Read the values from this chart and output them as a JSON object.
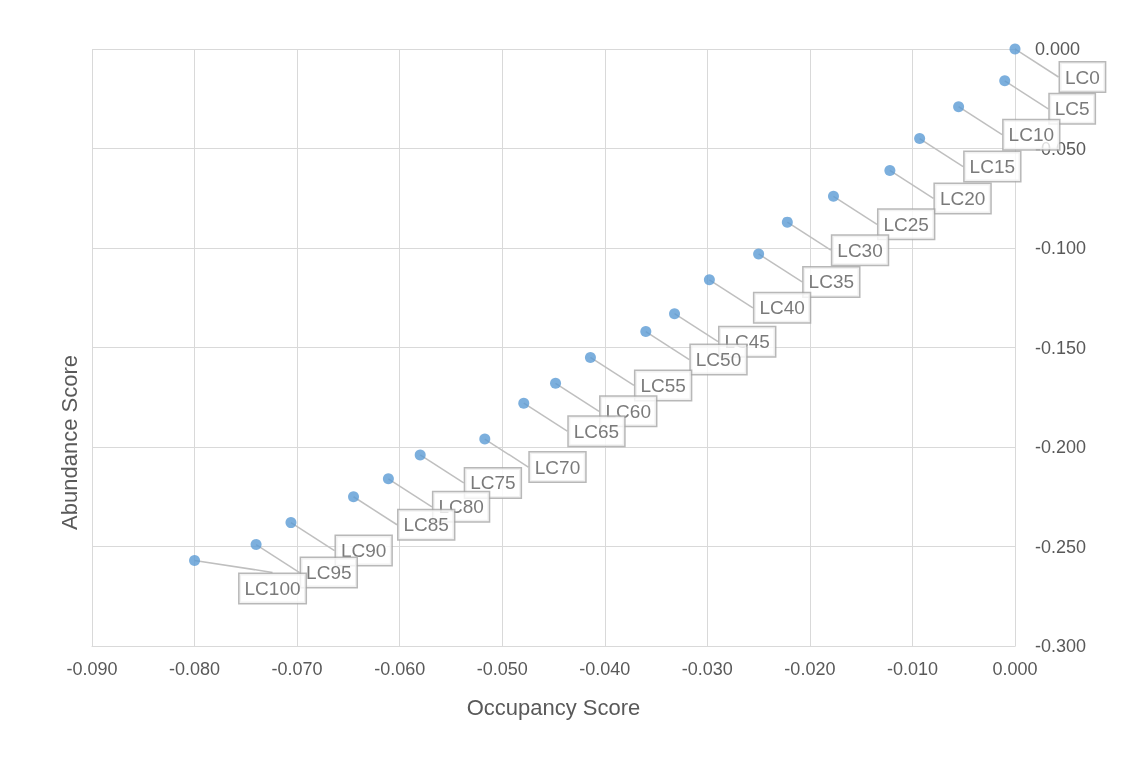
{
  "chart_data": {
    "type": "scatter",
    "xlabel": "Occupancy Score",
    "ylabel": "Abundance Score",
    "x": [
      0,
      -0.001,
      -0.0055,
      -0.0093,
      -0.0122,
      -0.0177,
      -0.0222,
      -0.025,
      -0.0298,
      -0.0332,
      -0.036,
      -0.0414,
      -0.0448,
      -0.0479,
      -0.0517,
      -0.058,
      -0.0611,
      -0.0645,
      -0.0706,
      -0.074,
      -0.08
    ],
    "series": [
      {
        "color": "#5b9bd5",
        "values": [
          0,
          -0.016,
          -0.029,
          -0.045,
          -0.061,
          -0.074,
          -0.087,
          -0.103,
          -0.116,
          -0.133,
          -0.142,
          -0.155,
          -0.168,
          -0.178,
          -0.196,
          -0.204,
          -0.216,
          -0.225,
          -0.238,
          -0.249,
          -0.257
        ]
      }
    ],
    "annotations": [
      {
        "text": "LC0",
        "x": 0,
        "y": 0
      },
      {
        "text": "LC5",
        "x": -0.001,
        "y": -0.016
      },
      {
        "text": "LC10",
        "x": -0.0055,
        "y": -0.029
      },
      {
        "text": "LC15",
        "x": -0.0093,
        "y": -0.045
      },
      {
        "text": "LC20",
        "x": -0.0122,
        "y": -0.061
      },
      {
        "text": "LC25",
        "x": -0.0177,
        "y": -0.074
      },
      {
        "text": "LC30",
        "x": -0.0222,
        "y": -0.087
      },
      {
        "text": "LC35",
        "x": -0.025,
        "y": -0.103
      },
      {
        "text": "LC40",
        "x": -0.0298,
        "y": -0.116
      },
      {
        "text": "LC45",
        "x": -0.0332,
        "y": -0.133
      },
      {
        "text": "LC50",
        "x": -0.036,
        "y": -0.142
      },
      {
        "text": "LC55",
        "x": -0.0414,
        "y": -0.155
      },
      {
        "text": "LC60",
        "x": -0.0448,
        "y": -0.168
      },
      {
        "text": "LC65",
        "x": -0.0479,
        "y": -0.178
      },
      {
        "text": "LC70",
        "x": -0.0517,
        "y": -0.196
      },
      {
        "text": "LC75",
        "x": -0.058,
        "y": -0.204
      },
      {
        "text": "LC80",
        "x": -0.0611,
        "y": -0.216
      },
      {
        "text": "LC85",
        "x": -0.0645,
        "y": -0.225
      },
      {
        "text": "LC90",
        "x": -0.0706,
        "y": -0.238
      },
      {
        "text": "LC95",
        "x": -0.074,
        "y": -0.249
      },
      {
        "text": "LC100",
        "x": -0.08,
        "y": -0.257
      }
    ],
    "xlim": [
      -0.09,
      0
    ],
    "xticks": [
      {
        "value": -0.09,
        "label": "-0.090"
      },
      {
        "value": -0.08,
        "label": "-0.080"
      },
      {
        "value": -0.07,
        "label": "-0.070"
      },
      {
        "value": -0.06,
        "label": "-0.060"
      },
      {
        "value": -0.05,
        "label": "-0.050"
      },
      {
        "value": -0.04,
        "label": "-0.040"
      },
      {
        "value": -0.03,
        "label": "-0.030"
      },
      {
        "value": -0.02,
        "label": "-0.020"
      },
      {
        "value": -0.01,
        "label": "-0.010"
      },
      {
        "value": 0,
        "label": "0.000"
      }
    ],
    "ylim": [
      -0.3,
      0
    ],
    "yticks": [
      {
        "value": 0,
        "label": "0.000"
      },
      {
        "value": -0.05,
        "label": "-0.050"
      },
      {
        "value": -0.1,
        "label": "-0.100"
      },
      {
        "value": -0.15,
        "label": "-0.150"
      },
      {
        "value": -0.2,
        "label": "-0.200"
      },
      {
        "value": -0.25,
        "label": "-0.250"
      },
      {
        "value": -0.3,
        "label": "-0.300"
      }
    ],
    "grid": true,
    "marker": "circle"
  }
}
